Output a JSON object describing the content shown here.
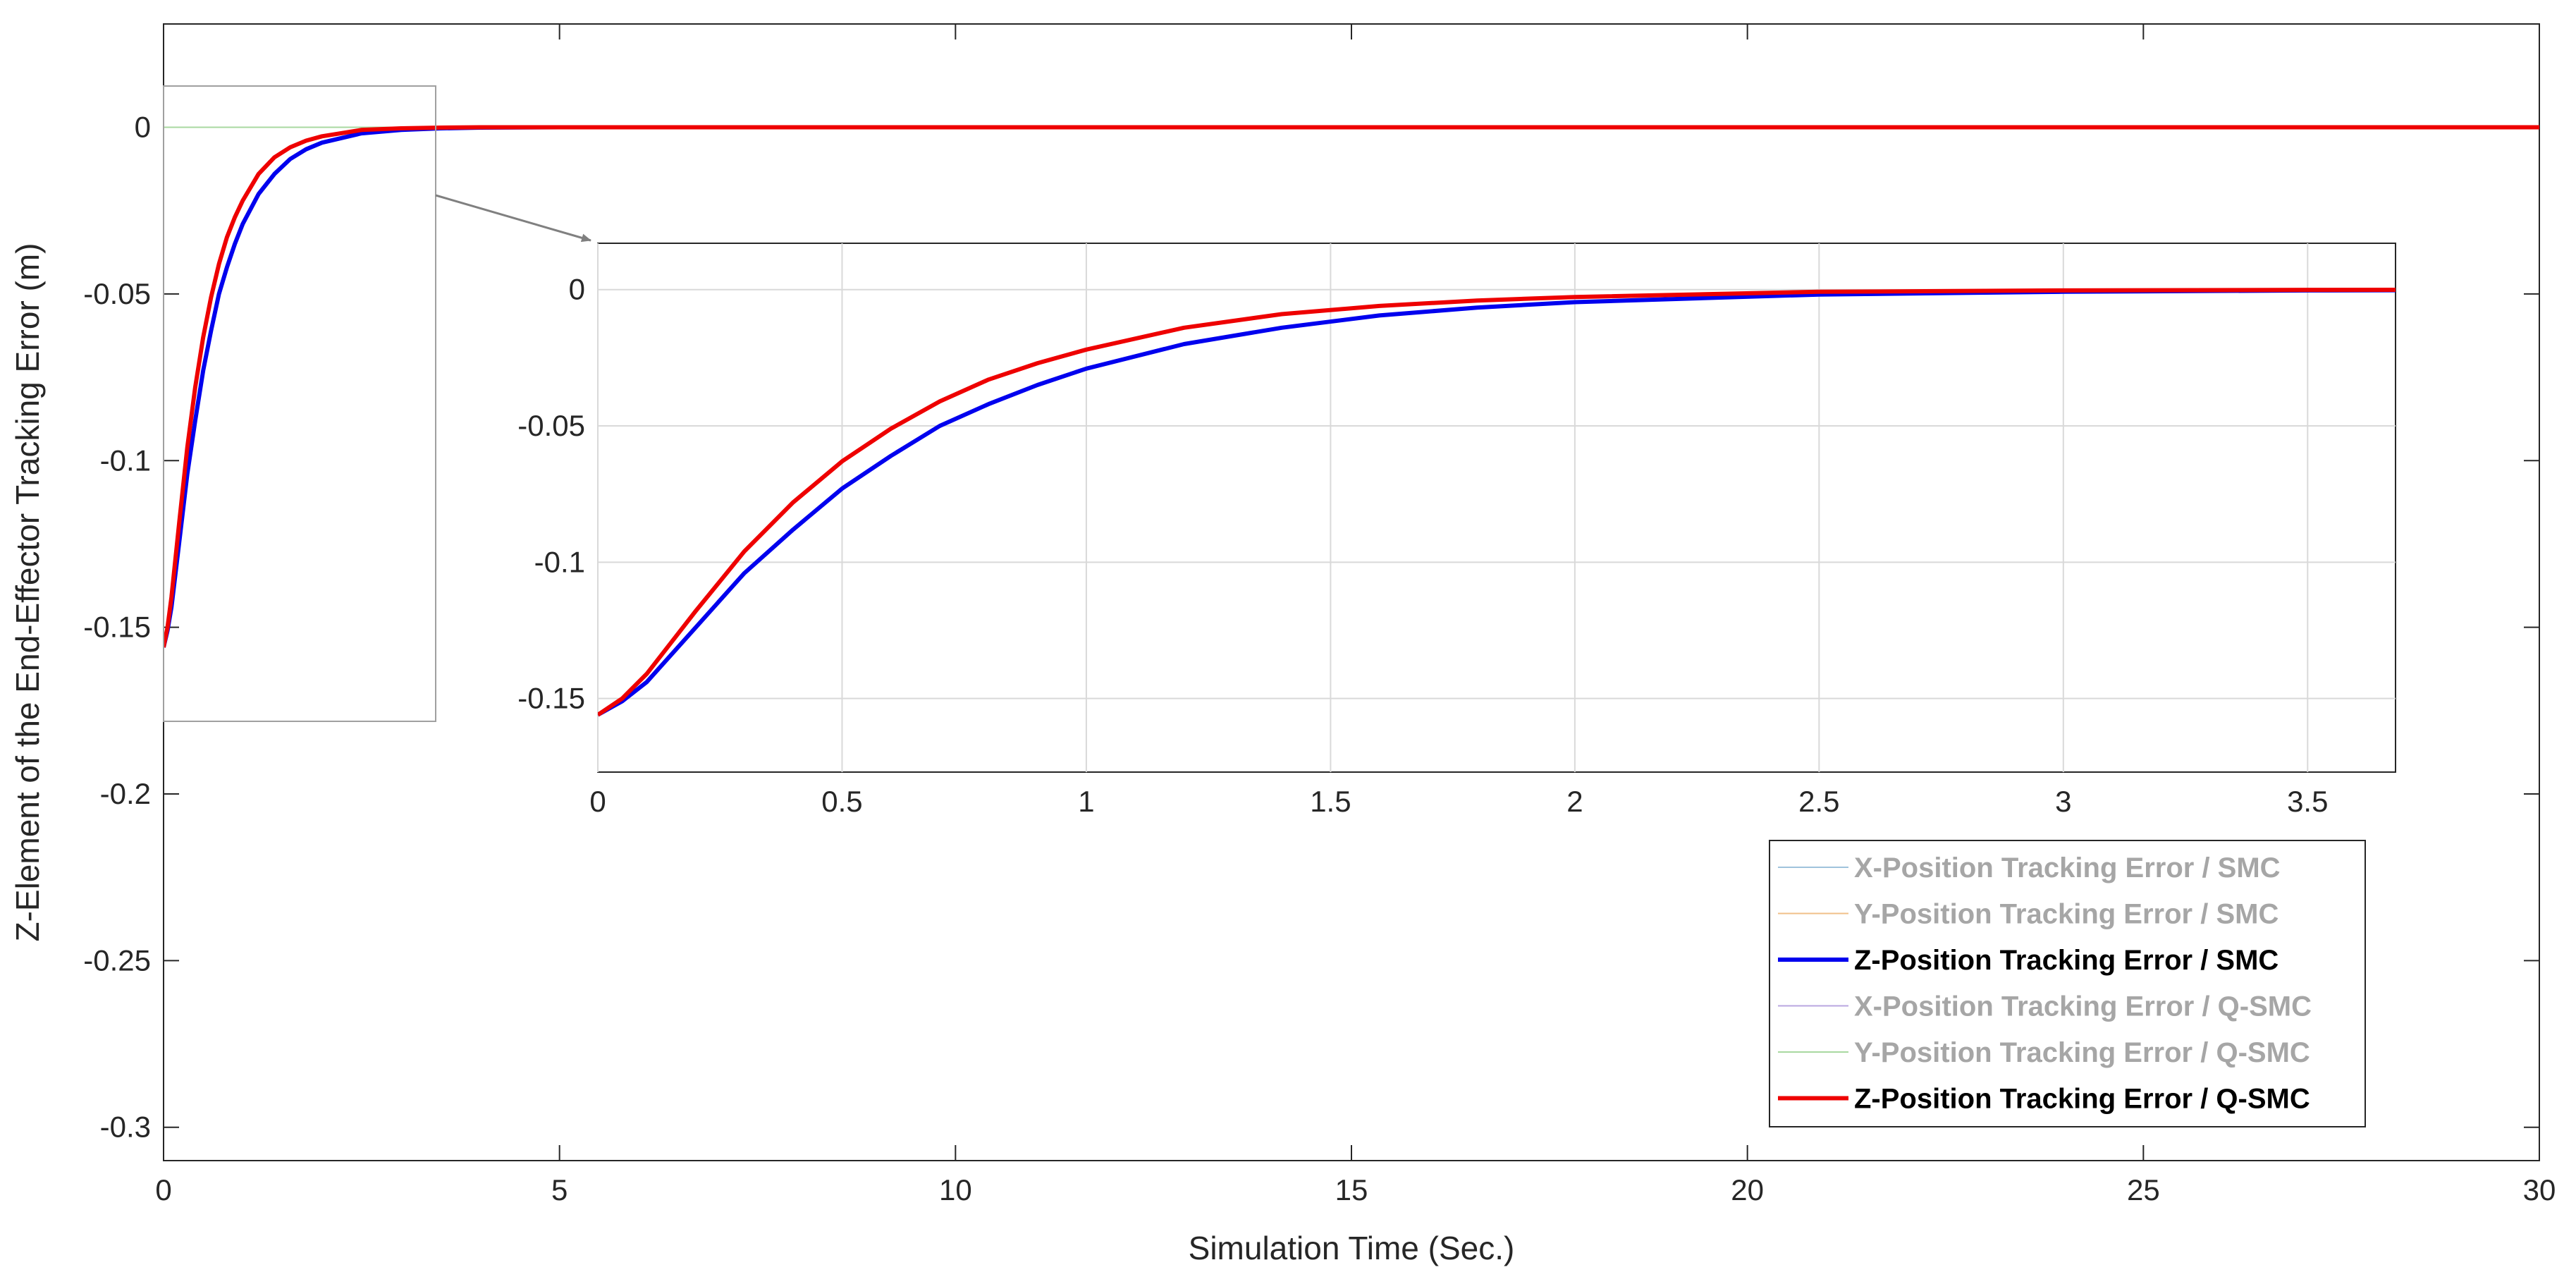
{
  "chart_data": [
    {
      "type": "line",
      "title": "",
      "xlabel": "Simulation Time (Sec.)",
      "ylabel": "Z-Element of the End-Effector Tracking Error (m)",
      "xlim": [
        0,
        30
      ],
      "ylim": [
        -0.31,
        0.031
      ],
      "x_ticks": [
        0,
        5,
        10,
        15,
        20,
        25,
        30
      ],
      "x_tick_labels": [
        "0",
        "5",
        "10",
        "15",
        "20",
        "25",
        "30"
      ],
      "y_ticks": [
        0,
        -0.05,
        -0.1,
        -0.15,
        -0.2,
        -0.25,
        -0.3
      ],
      "y_tick_labels": [
        "0",
        "-0.05",
        "-0.1",
        "-0.15",
        "-0.2",
        "-0.25",
        "-0.3"
      ],
      "grid": false,
      "legend_position": "bottom-right",
      "series": [
        {
          "name": "X-Position Tracking Error / SMC",
          "color": "#9fc3dc",
          "visible": false,
          "x": [
            0,
            30
          ],
          "y": [
            0,
            0
          ]
        },
        {
          "name": "Y-Position Tracking Error / SMC",
          "color": "#f0c088",
          "visible": false,
          "x": [
            0,
            30
          ],
          "y": [
            0,
            0
          ]
        },
        {
          "name": "Z-Position Tracking Error / SMC",
          "color": "#0000ee",
          "visible": true,
          "x": [
            0,
            0.05,
            0.1,
            0.2,
            0.3,
            0.4,
            0.5,
            0.6,
            0.7,
            0.8,
            0.9,
            1.0,
            1.2,
            1.4,
            1.6,
            1.8,
            2.0,
            2.5,
            3.0,
            3.5,
            4,
            5,
            10,
            15,
            20,
            25,
            30
          ],
          "y": [
            -0.156,
            -0.151,
            -0.144,
            -0.124,
            -0.104,
            -0.088,
            -0.073,
            -0.061,
            -0.05,
            -0.042,
            -0.035,
            -0.029,
            -0.02,
            -0.014,
            -0.0095,
            -0.0066,
            -0.0046,
            -0.0018,
            -0.0008,
            -0.0003,
            -0.0001,
            0,
            0,
            0,
            0,
            0,
            0
          ]
        },
        {
          "name": "X-Position Tracking Error / Q-SMC",
          "color": "#b9a6e0",
          "visible": false,
          "x": [
            0,
            30
          ],
          "y": [
            0,
            0
          ]
        },
        {
          "name": "Y-Position Tracking Error / Q-SMC",
          "color": "#a8d8a0",
          "visible": false,
          "x": [
            0,
            30
          ],
          "y": [
            0,
            0
          ]
        },
        {
          "name": "Z-Position Tracking Error / Q-SMC",
          "color": "#ee0000",
          "visible": true,
          "x": [
            0,
            0.05,
            0.1,
            0.2,
            0.3,
            0.4,
            0.5,
            0.6,
            0.7,
            0.8,
            0.9,
            1.0,
            1.2,
            1.4,
            1.6,
            1.8,
            2.0,
            2.5,
            3.0,
            3.5,
            4,
            5,
            10,
            15,
            20,
            25,
            30
          ],
          "y": [
            -0.156,
            -0.15,
            -0.141,
            -0.118,
            -0.096,
            -0.078,
            -0.063,
            -0.051,
            -0.041,
            -0.033,
            -0.027,
            -0.022,
            -0.014,
            -0.009,
            -0.006,
            -0.004,
            -0.0027,
            -0.0008,
            -0.0003,
            -0.0001,
            0,
            0,
            0,
            0,
            0,
            0,
            0
          ]
        }
      ]
    },
    {
      "type": "line",
      "title": "",
      "xlabel": "",
      "ylabel": "",
      "xlim": [
        0,
        3.68
      ],
      "ylim": [
        -0.177,
        0.017
      ],
      "x_ticks": [
        0,
        0.5,
        1,
        1.5,
        2,
        2.5,
        3,
        3.5
      ],
      "x_tick_labels": [
        "0",
        "0.5",
        "1",
        "1.5",
        "2",
        "2.5",
        "3",
        "3.5"
      ],
      "y_ticks": [
        0,
        -0.05,
        -0.1,
        -0.15
      ],
      "y_tick_labels": [
        "0",
        "-0.05",
        "-0.1",
        "-0.15"
      ],
      "grid": true,
      "series_ref": "zoomed view of the Z-Position Tracking Error series (SMC, Q-SMC) for 0–3.68 s"
    }
  ]
}
